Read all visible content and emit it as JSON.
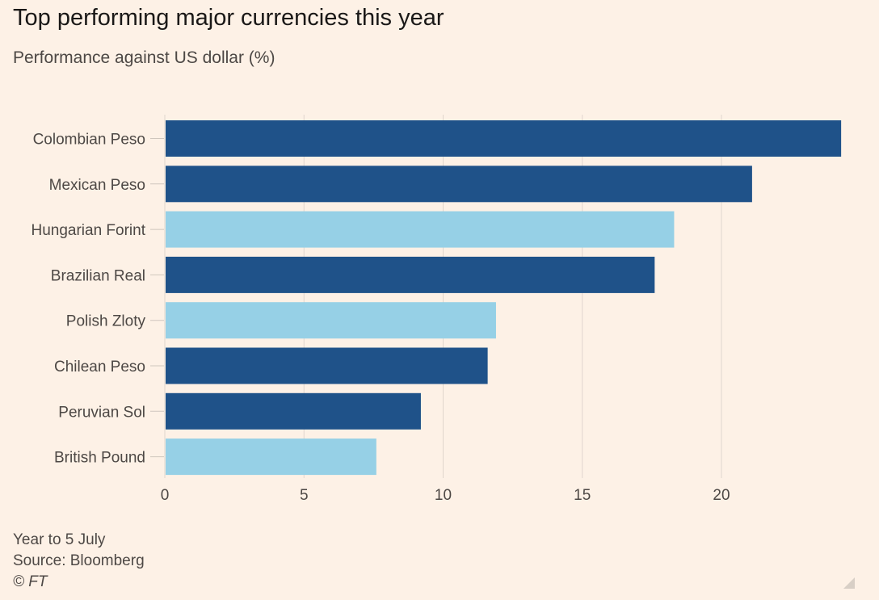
{
  "chart_data": {
    "type": "bar",
    "orientation": "horizontal",
    "title": "Top performing major currencies this year",
    "subtitle": "Performance against US dollar (%)",
    "categories": [
      "Colombian Peso",
      "Mexican Peso",
      "Hungarian Forint",
      "Brazilian Real",
      "Polish Zloty",
      "Chilean Peso",
      "Peruvian Sol",
      "British Pound"
    ],
    "values": [
      24.3,
      21.1,
      18.3,
      17.6,
      11.9,
      11.6,
      9.2,
      7.6
    ],
    "highlight": [
      false,
      false,
      true,
      false,
      true,
      false,
      false,
      true
    ],
    "xticks": [
      0,
      5,
      10,
      15,
      20
    ],
    "xlim": [
      0,
      25
    ],
    "grid": true,
    "colors": {
      "default": "#1f5289",
      "highlight": "#96d0e6",
      "background": "#fdf1e6",
      "grid": "#e0d6cd"
    }
  },
  "footer": {
    "note": "Year to 5 July",
    "source": "Source: Bloomberg",
    "copyright": "© FT"
  }
}
